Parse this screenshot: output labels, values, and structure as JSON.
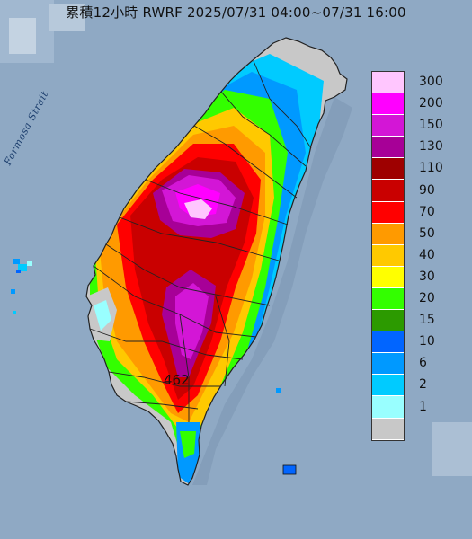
{
  "title": "累積12小時 RWRF 2025/07/31 04:00~07/31 16:00",
  "strait_label": "Formosa Strait",
  "max_value": "462",
  "legend": {
    "items": [
      {
        "label": "300",
        "color": "#ffc6fe"
      },
      {
        "label": "200",
        "color": "#ff00ff"
      },
      {
        "label": "150",
        "color": "#d316d6"
      },
      {
        "label": "130",
        "color": "#a70097"
      },
      {
        "label": "110",
        "color": "#9e0000"
      },
      {
        "label": "90",
        "color": "#c90000"
      },
      {
        "label": "70",
        "color": "#ff0000"
      },
      {
        "label": "50",
        "color": "#ff9a00"
      },
      {
        "label": "40",
        "color": "#ffc900"
      },
      {
        "label": "30",
        "color": "#ffff00"
      },
      {
        "label": "20",
        "color": "#33ff00"
      },
      {
        "label": "15",
        "color": "#2c9a00"
      },
      {
        "label": "10",
        "color": "#0165ff"
      },
      {
        "label": "6",
        "color": "#0099ff"
      },
      {
        "label": "2",
        "color": "#00cbff"
      },
      {
        "label": "1",
        "color": "#99ffff"
      },
      {
        "label": "",
        "color": "#c8c8c8"
      }
    ]
  },
  "colors": {
    "sea": "#8fa9c4",
    "land_shadow": "#c4c4c4"
  }
}
